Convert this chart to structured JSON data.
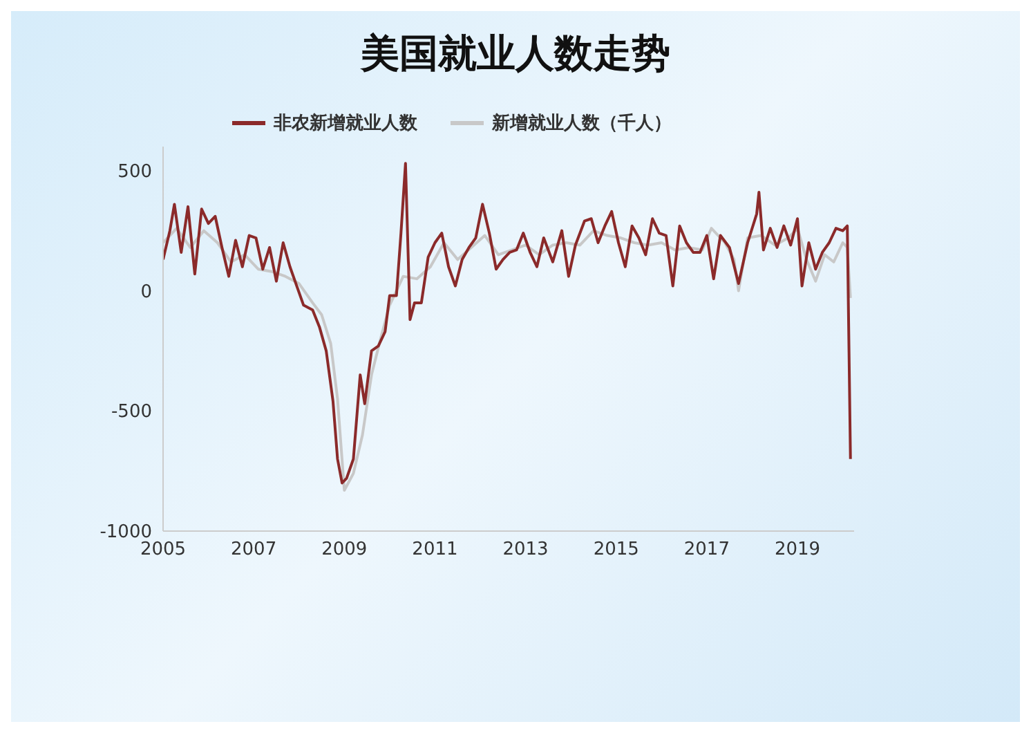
{
  "chart_data": {
    "type": "line",
    "title": "美国就业人数走势",
    "legend": "top left",
    "grid": false,
    "marker": "none",
    "line_style": "solid",
    "xlim": [
      2005,
      2020.25
    ],
    "xticks": [
      2005,
      2007,
      2009,
      2011,
      2013,
      2015,
      2017,
      2019
    ],
    "ylim": [
      -1000,
      600
    ],
    "yticks": [
      {
        "value": -1000,
        "label": "-1000"
      },
      {
        "value": -500,
        "label": "-500"
      },
      0,
      500
    ],
    "series": [
      {
        "name": "非农新增就业人数",
        "color": "#8b2a2a",
        "x": [
          2005.0,
          2005.15,
          2005.25,
          2005.4,
          2005.55,
          2005.7,
          2005.85,
          2006.0,
          2006.15,
          2006.3,
          2006.45,
          2006.6,
          2006.75,
          2006.9,
          2007.05,
          2007.2,
          2007.35,
          2007.5,
          2007.65,
          2007.8,
          2007.95,
          2008.1,
          2008.3,
          2008.45,
          2008.6,
          2008.75,
          2008.85,
          2008.95,
          2009.05,
          2009.2,
          2009.35,
          2009.45,
          2009.6,
          2009.75,
          2009.9,
          2010.0,
          2010.15,
          2010.25,
          2010.35,
          2010.45,
          2010.55,
          2010.7,
          2010.85,
          2011.0,
          2011.15,
          2011.3,
          2011.45,
          2011.6,
          2011.75,
          2011.9,
          2012.05,
          2012.2,
          2012.35,
          2012.5,
          2012.65,
          2012.8,
          2012.95,
          2013.1,
          2013.25,
          2013.4,
          2013.6,
          2013.8,
          2013.95,
          2014.1,
          2014.3,
          2014.45,
          2014.6,
          2014.75,
          2014.9,
          2015.05,
          2015.2,
          2015.35,
          2015.5,
          2015.65,
          2015.8,
          2015.95,
          2016.1,
          2016.25,
          2016.4,
          2016.55,
          2016.7,
          2016.85,
          2017.0,
          2017.15,
          2017.3,
          2017.5,
          2017.7,
          2017.9,
          2018.1,
          2018.15,
          2018.25,
          2018.4,
          2018.55,
          2018.7,
          2018.85,
          2019.0,
          2019.1,
          2019.25,
          2019.4,
          2019.55,
          2019.7,
          2019.85,
          2020.0,
          2020.1,
          2020.17
        ],
        "values": [
          130,
          250,
          360,
          160,
          350,
          70,
          340,
          280,
          310,
          180,
          60,
          210,
          100,
          230,
          220,
          90,
          180,
          40,
          200,
          100,
          20,
          -60,
          -80,
          -150,
          -250,
          -460,
          -700,
          -800,
          -780,
          -700,
          -350,
          -470,
          -250,
          -230,
          -170,
          -20,
          -20,
          240,
          530,
          -120,
          -50,
          -50,
          140,
          200,
          240,
          100,
          20,
          130,
          180,
          220,
          360,
          240,
          90,
          130,
          160,
          170,
          240,
          160,
          100,
          220,
          120,
          250,
          60,
          190,
          290,
          300,
          200,
          270,
          330,
          200,
          100,
          270,
          220,
          150,
          300,
          240,
          230,
          20,
          270,
          200,
          160,
          160,
          230,
          50,
          230,
          180,
          30,
          200,
          320,
          410,
          170,
          260,
          180,
          270,
          190,
          300,
          20,
          200,
          90,
          160,
          200,
          260,
          250,
          270,
          -700
        ]
      },
      {
        "name": "新增就业人数（千人）",
        "color": "#c8c8c8",
        "x": [
          2005.0,
          2005.3,
          2005.6,
          2005.9,
          2006.2,
          2006.5,
          2006.8,
          2007.1,
          2007.4,
          2007.7,
          2008.0,
          2008.3,
          2008.5,
          2008.7,
          2008.85,
          2009.0,
          2009.2,
          2009.4,
          2009.6,
          2009.8,
          2010.0,
          2010.3,
          2010.6,
          2010.9,
          2011.2,
          2011.5,
          2011.8,
          2012.1,
          2012.4,
          2012.7,
          2013.0,
          2013.3,
          2013.6,
          2013.9,
          2014.2,
          2014.5,
          2014.8,
          2015.1,
          2015.4,
          2015.7,
          2016.0,
          2016.3,
          2016.6,
          2016.9,
          2017.1,
          2017.4,
          2017.6,
          2017.7,
          2017.9,
          2018.2,
          2018.5,
          2018.8,
          2019.0,
          2019.2,
          2019.4,
          2019.6,
          2019.8,
          2020.0,
          2020.1,
          2020.17
        ],
        "values": [
          200,
          260,
          180,
          250,
          200,
          120,
          150,
          90,
          80,
          60,
          30,
          -50,
          -100,
          -220,
          -450,
          -830,
          -760,
          -600,
          -350,
          -200,
          -60,
          60,
          50,
          100,
          200,
          130,
          180,
          230,
          150,
          170,
          190,
          150,
          190,
          200,
          190,
          250,
          230,
          220,
          200,
          190,
          200,
          170,
          180,
          170,
          260,
          200,
          130,
          0,
          220,
          230,
          190,
          220,
          260,
          130,
          40,
          150,
          120,
          200,
          180,
          -30
        ]
      }
    ]
  }
}
